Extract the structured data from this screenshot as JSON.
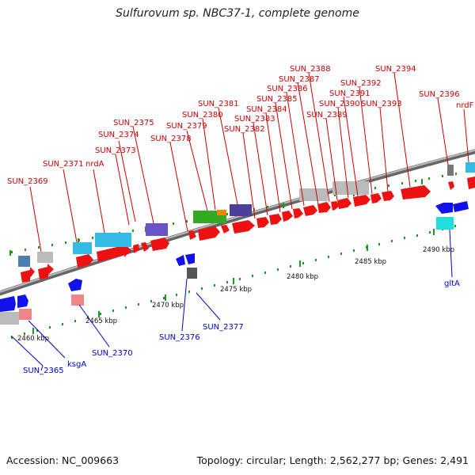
{
  "title": "Sulfurovum sp. NBC37-1, complete genome",
  "footer": {
    "accession": "Accession: NC_009663",
    "summary": "Topology: circular; Length: 2,562,277 bp; Genes: 2,491"
  },
  "colors": {
    "forward_label": "#cc0000",
    "reverse_label": "#0000cc",
    "backbone": "#888888",
    "tick_dots": "#008800",
    "cds_forward": "#ee1111",
    "cds_reverse": "#1111ee"
  },
  "scale_ticks": [
    "2460 kbp",
    "2465 kbp",
    "2470 kbp",
    "2475 kbp",
    "2480 kbp",
    "2485 kbp",
    "2490 kbp"
  ],
  "forward_labels": [
    "SUN_2369",
    "SUN_2371",
    "nrdA",
    "SUN_2373",
    "SUN_2374",
    "SUN_2375",
    "SUN_2378",
    "SUN_2379",
    "SUN_2380",
    "SUN_2381",
    "SUN_2382",
    "SUN_2383",
    "SUN_2384",
    "SUN_2385",
    "SUN_2386",
    "SUN_2387",
    "SUN_2388",
    "SUN_2389",
    "SUN_2390",
    "SUN_2391",
    "SUN_2392",
    "SUN_2393",
    "SUN_2394",
    "SUN_2396",
    "nrdF"
  ],
  "reverse_labels": [
    "SUN_2365",
    "ksgA",
    "SUN_2370",
    "SUN_2376",
    "SUN_2377",
    "gltA"
  ]
}
